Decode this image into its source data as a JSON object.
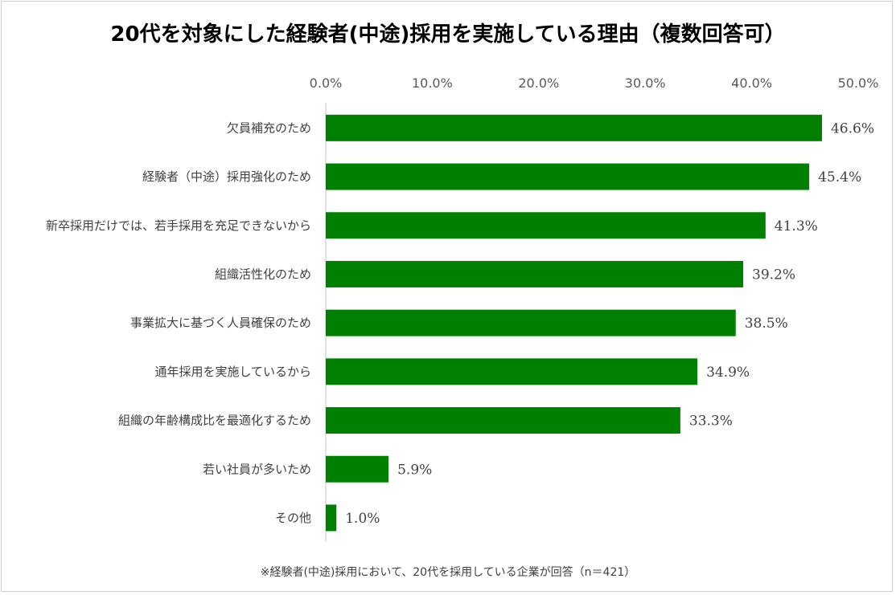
{
  "chart_data": {
    "type": "bar",
    "orientation": "horizontal",
    "title": "20代を対象にした経験者(中途)採用を実施している理由（複数回答可）",
    "categories": [
      "欠員補充のため",
      "経験者（中途）採用強化のため",
      "新卒採用だけでは、若手採用を充足できないから",
      "組織活性化のため",
      "事業拡大に基づく人員確保のため",
      "通年採用を実施しているから",
      "組織の年齢構成比を最適化するため",
      "若い社員が多いため",
      "その他"
    ],
    "values": [
      46.6,
      45.4,
      41.3,
      39.2,
      38.5,
      34.9,
      33.3,
      5.9,
      1.0
    ],
    "value_labels": [
      "46.6%",
      "45.4%",
      "41.3%",
      "39.2%",
      "38.5%",
      "34.9%",
      "33.3%",
      "5.9%",
      "1.0%"
    ],
    "xlim": [
      0,
      50
    ],
    "xticks": [
      0,
      10,
      20,
      30,
      40,
      50
    ],
    "xtick_labels": [
      "0.0%",
      "10.0%",
      "20.0%",
      "30.0%",
      "40.0%",
      "50.0%"
    ],
    "grid": false,
    "bar_color": "#008000",
    "note": "※経験者(中途)採用において、20代を採用している企業が回答（n＝421）"
  }
}
